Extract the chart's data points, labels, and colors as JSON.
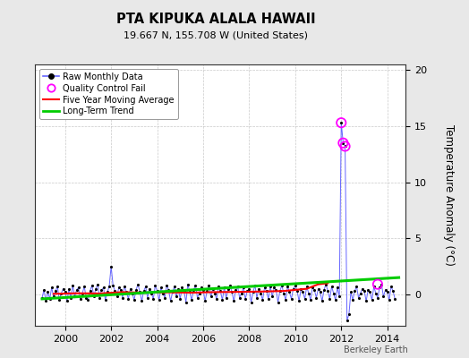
{
  "title": "PTA KIPUKA ALALA HAWAII",
  "subtitle": "19.667 N, 155.708 W (United States)",
  "ylabel": "Temperature Anomaly (°C)",
  "credit": "Berkeley Earth",
  "xlim": [
    1998.7,
    2014.8
  ],
  "ylim": [
    -2.8,
    20.5
  ],
  "yticks": [
    0,
    5,
    10,
    15,
    20
  ],
  "xticks": [
    2000,
    2002,
    2004,
    2006,
    2008,
    2010,
    2012,
    2014
  ],
  "bg_color": "#e8e8e8",
  "plot_bg_color": "#ffffff",
  "raw_line_color": "#6666ff",
  "raw_dot_color": "#000000",
  "qc_fail_color": "#ff00ff",
  "moving_avg_color": "#ff0000",
  "trend_color": "#00cc00",
  "raw_data": {
    "years": [
      1999.0,
      1999.083,
      1999.167,
      1999.25,
      1999.333,
      1999.417,
      1999.5,
      1999.583,
      1999.667,
      1999.75,
      1999.833,
      1999.917,
      2000.0,
      2000.083,
      2000.167,
      2000.25,
      2000.333,
      2000.417,
      2000.5,
      2000.583,
      2000.667,
      2000.75,
      2000.833,
      2000.917,
      2001.0,
      2001.083,
      2001.167,
      2001.25,
      2001.333,
      2001.417,
      2001.5,
      2001.583,
      2001.667,
      2001.75,
      2001.833,
      2001.917,
      2002.0,
      2002.083,
      2002.167,
      2002.25,
      2002.333,
      2002.417,
      2002.5,
      2002.583,
      2002.667,
      2002.75,
      2002.833,
      2002.917,
      2003.0,
      2003.083,
      2003.167,
      2003.25,
      2003.333,
      2003.417,
      2003.5,
      2003.583,
      2003.667,
      2003.75,
      2003.833,
      2003.917,
      2004.0,
      2004.083,
      2004.167,
      2004.25,
      2004.333,
      2004.417,
      2004.5,
      2004.583,
      2004.667,
      2004.75,
      2004.833,
      2004.917,
      2005.0,
      2005.083,
      2005.167,
      2005.25,
      2005.333,
      2005.417,
      2005.5,
      2005.583,
      2005.667,
      2005.75,
      2005.833,
      2005.917,
      2006.0,
      2006.083,
      2006.167,
      2006.25,
      2006.333,
      2006.417,
      2006.5,
      2006.583,
      2006.667,
      2006.75,
      2006.833,
      2006.917,
      2007.0,
      2007.083,
      2007.167,
      2007.25,
      2007.333,
      2007.417,
      2007.5,
      2007.583,
      2007.667,
      2007.75,
      2007.833,
      2007.917,
      2008.0,
      2008.083,
      2008.167,
      2008.25,
      2008.333,
      2008.417,
      2008.5,
      2008.583,
      2008.667,
      2008.75,
      2008.833,
      2008.917,
      2009.0,
      2009.083,
      2009.167,
      2009.25,
      2009.333,
      2009.417,
      2009.5,
      2009.583,
      2009.667,
      2009.75,
      2009.833,
      2009.917,
      2010.0,
      2010.083,
      2010.167,
      2010.25,
      2010.333,
      2010.417,
      2010.5,
      2010.583,
      2010.667,
      2010.75,
      2010.833,
      2010.917,
      2011.0,
      2011.083,
      2011.167,
      2011.25,
      2011.333,
      2011.417,
      2011.5,
      2011.583,
      2011.667,
      2011.75,
      2011.833,
      2011.917,
      2012.0,
      2012.083,
      2012.167,
      2012.25,
      2012.333,
      2012.417,
      2012.5,
      2012.583,
      2012.667,
      2012.75,
      2012.833,
      2012.917,
      2013.0,
      2013.083,
      2013.167,
      2013.25,
      2013.333,
      2013.417,
      2013.5,
      2013.583,
      2013.667,
      2013.75,
      2013.833,
      2013.917,
      2014.0,
      2014.083,
      2014.167,
      2014.25,
      2014.333
    ],
    "values": [
      -0.3,
      0.4,
      -0.6,
      0.2,
      -0.4,
      0.6,
      -0.2,
      0.3,
      0.7,
      -0.5,
      0.1,
      0.5,
      0.2,
      -0.6,
      0.5,
      -0.3,
      0.8,
      -0.2,
      0.4,
      0.6,
      -0.4,
      0.1,
      0.7,
      -0.3,
      -0.5,
      0.3,
      0.8,
      -0.2,
      0.5,
      0.9,
      -0.3,
      0.4,
      0.6,
      -0.5,
      0.2,
      0.7,
      2.5,
      0.8,
      0.3,
      -0.2,
      0.6,
      0.4,
      -0.3,
      0.7,
      0.2,
      -0.4,
      0.5,
      0.1,
      -0.5,
      0.4,
      0.9,
      0.2,
      -0.6,
      0.3,
      0.7,
      -0.3,
      0.5,
      0.1,
      -0.4,
      0.8,
      0.3,
      -0.5,
      0.6,
      0.1,
      -0.3,
      0.8,
      0.4,
      -0.6,
      0.2,
      0.7,
      -0.2,
      0.5,
      -0.4,
      0.6,
      0.3,
      -0.7,
      0.9,
      0.2,
      -0.5,
      0.4,
      0.8,
      -0.3,
      0.1,
      0.6,
      0.4,
      -0.6,
      0.3,
      0.8,
      -0.2,
      0.5,
      0.1,
      -0.4,
      0.7,
      0.3,
      -0.5,
      0.6,
      -0.3,
      0.5,
      0.8,
      0.2,
      -0.6,
      0.4,
      0.7,
      -0.3,
      0.1,
      0.6,
      -0.4,
      0.3,
      0.5,
      -0.7,
      0.2,
      0.8,
      -0.3,
      0.5,
      0.1,
      -0.5,
      0.6,
      0.3,
      -0.4,
      0.7,
      -0.2,
      0.6,
      0.4,
      -0.7,
      0.3,
      0.8,
      0.1,
      -0.5,
      0.7,
      0.2,
      -0.4,
      0.5,
      0.8,
      0.3,
      -0.6,
      0.5,
      0.2,
      -0.4,
      0.7,
      0.1,
      -0.5,
      0.6,
      0.4,
      -0.3,
      0.5,
      0.2,
      -0.6,
      0.4,
      0.9,
      0.3,
      -0.4,
      0.7,
      0.1,
      -0.5,
      0.6,
      -0.2,
      15.3,
      13.5,
      13.2,
      -2.3,
      -1.8,
      0.2,
      -0.5,
      0.3,
      0.7,
      -0.3,
      0.1,
      0.5,
      0.3,
      -0.6,
      0.4,
      0.2,
      -0.5,
      0.7,
      0.1,
      -0.3,
      0.6,
      0.9,
      -0.2,
      0.4,
      0.2,
      -0.5,
      0.7,
      0.3,
      -0.4
    ]
  },
  "qc_fail_points": {
    "years": [
      2012.0,
      2012.083,
      2012.167,
      2013.583
    ],
    "values": [
      15.3,
      13.5,
      13.2,
      0.9
    ]
  },
  "moving_avg_x": [
    1999.5,
    2000.5,
    2001.5,
    2002.5,
    2003.5,
    2004.5,
    2005.5,
    2006.5,
    2007.5,
    2008.5,
    2009.5,
    2010.5,
    2011.0,
    2011.417
  ],
  "moving_avg_y": [
    0.05,
    0.1,
    0.08,
    0.2,
    0.15,
    0.18,
    0.15,
    0.2,
    0.22,
    0.25,
    0.3,
    0.5,
    0.9,
    1.0
  ],
  "trend_x": [
    1999.0,
    2014.5
  ],
  "trend_y": [
    -0.4,
    1.5
  ]
}
